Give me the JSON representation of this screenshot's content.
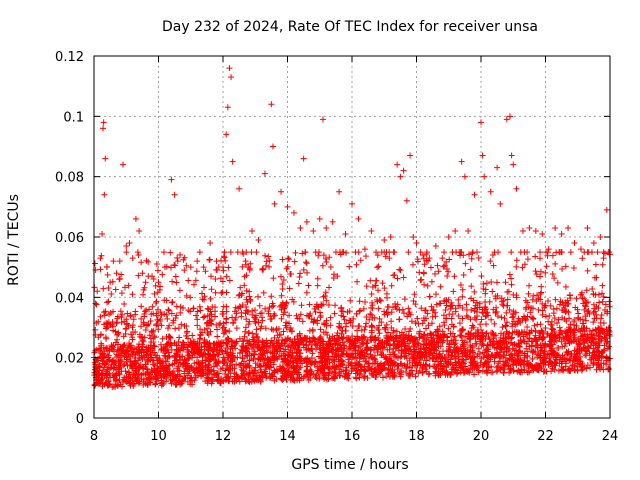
{
  "chart_data": {
    "type": "scatter",
    "title": "Day 232 of 2024, Rate Of TEC Index for receiver unsa",
    "xlabel": "GPS time / hours",
    "ylabel": "ROTI / TECUs",
    "xlim": [
      8,
      24
    ],
    "ylim": [
      0,
      0.12
    ],
    "xticks": [
      8,
      10,
      12,
      14,
      16,
      18,
      20,
      22,
      24
    ],
    "xtick_labels": [
      "8",
      "10",
      "12",
      "14",
      "16",
      "18",
      "20",
      "22",
      "24"
    ],
    "yticks": [
      0,
      0.02,
      0.04,
      0.06,
      0.08,
      0.1,
      0.12
    ],
    "ytick_labels": [
      "0",
      "0.02",
      "0.04",
      "0.06",
      "0.08",
      "0.1",
      "0.12"
    ],
    "grid": true,
    "marker": "plus",
    "color": "#ff0000",
    "series": [
      {
        "name": "ROTI",
        "x": [
          8.1,
          8.2,
          8.25,
          8.28,
          8.3,
          8.32,
          8.35,
          8.4,
          8.5,
          8.6,
          8.7,
          8.8,
          8.9,
          9.0,
          9.1,
          9.2,
          9.3,
          9.4,
          9.5,
          9.6,
          9.8,
          10.0,
          10.2,
          10.4,
          10.5,
          10.6,
          10.8,
          11.0,
          11.2,
          11.4,
          11.6,
          11.8,
          12.0,
          12.1,
          12.15,
          12.2,
          12.25,
          12.3,
          12.5,
          12.7,
          12.9,
          13.1,
          13.3,
          13.5,
          13.55,
          13.6,
          13.8,
          14.0,
          14.2,
          14.4,
          14.5,
          14.6,
          14.8,
          15.0,
          15.1,
          15.2,
          15.4,
          15.6,
          15.8,
          16.0,
          16.2,
          16.4,
          16.6,
          16.8,
          17.0,
          17.2,
          17.4,
          17.5,
          17.6,
          17.7,
          17.8,
          17.9,
          18.0,
          18.2,
          18.4,
          18.6,
          18.8,
          19.0,
          19.2,
          19.4,
          19.5,
          19.6,
          19.8,
          20.0,
          20.05,
          20.1,
          20.3,
          20.5,
          20.6,
          20.8,
          20.9,
          20.95,
          21.0,
          21.1,
          21.3,
          21.5,
          21.7,
          21.9,
          22.1,
          22.3,
          22.5,
          22.7,
          22.9,
          23.1,
          23.3,
          23.5,
          23.7,
          23.8,
          23.9,
          23.95
        ],
        "y": [
          0.042,
          0.053,
          0.061,
          0.096,
          0.098,
          0.074,
          0.086,
          0.05,
          0.045,
          0.052,
          0.048,
          0.052,
          0.084,
          0.057,
          0.058,
          0.053,
          0.066,
          0.062,
          0.048,
          0.045,
          0.047,
          0.045,
          0.05,
          0.079,
          0.074,
          0.052,
          0.049,
          0.05,
          0.052,
          0.05,
          0.058,
          0.052,
          0.05,
          0.094,
          0.103,
          0.116,
          0.113,
          0.085,
          0.076,
          0.052,
          0.062,
          0.059,
          0.081,
          0.104,
          0.09,
          0.071,
          0.075,
          0.07,
          0.068,
          0.063,
          0.086,
          0.065,
          0.062,
          0.066,
          0.099,
          0.063,
          0.065,
          0.075,
          0.061,
          0.071,
          0.066,
          0.056,
          0.062,
          0.054,
          0.059,
          0.06,
          0.084,
          0.08,
          0.082,
          0.072,
          0.087,
          0.06,
          0.058,
          0.054,
          0.053,
          0.057,
          0.053,
          0.06,
          0.062,
          0.085,
          0.08,
          0.062,
          0.074,
          0.098,
          0.087,
          0.08,
          0.075,
          0.083,
          0.071,
          0.099,
          0.1,
          0.087,
          0.084,
          0.076,
          0.062,
          0.063,
          0.062,
          0.061,
          0.056,
          0.063,
          0.061,
          0.063,
          0.058,
          0.056,
          0.063,
          0.058,
          0.06,
          0.053,
          0.069,
          0.055
        ]
      }
    ],
    "background_scatter_count": 4200,
    "background_description_note": ""
  }
}
